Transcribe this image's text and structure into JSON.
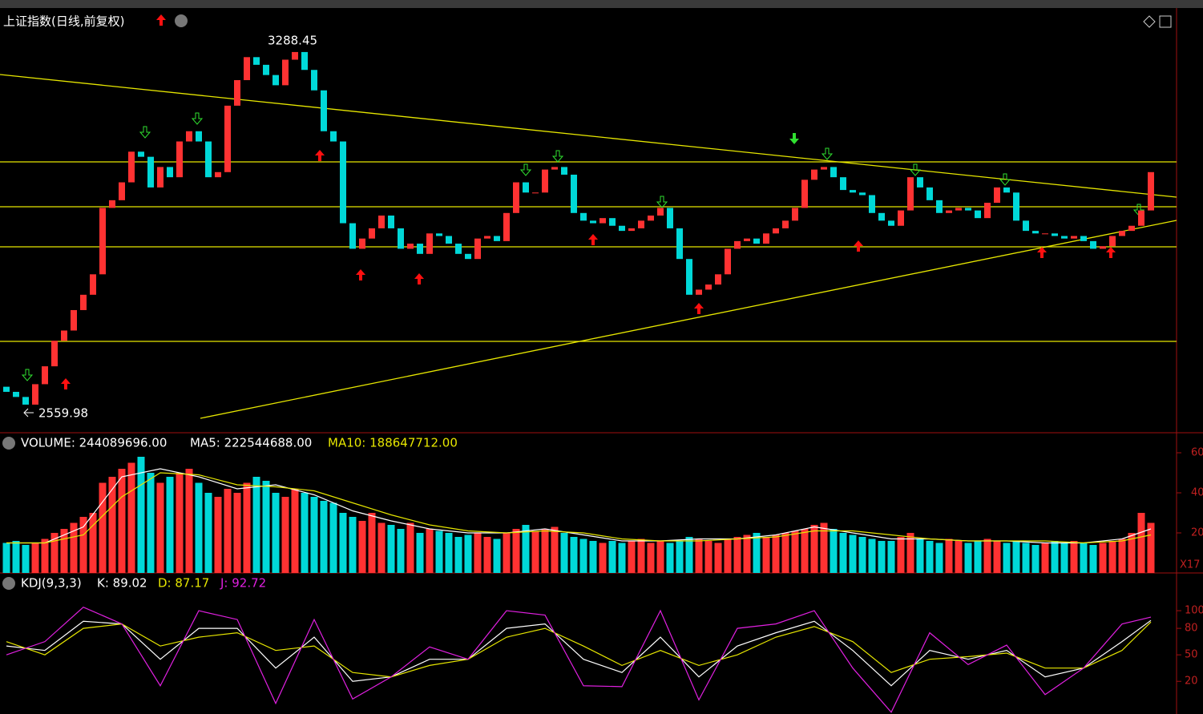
{
  "chart_data": {
    "type": "candlestick",
    "title": "上证指数(日线,前复权)",
    "ylim": [
      2520,
      3348
    ],
    "high_label": 3288.45,
    "low_label": 2559.98,
    "open": [
      2610,
      2600,
      2590,
      2575,
      2615,
      2650,
      2700,
      2720,
      2760,
      2790,
      2830,
      2960,
      2975,
      3010,
      3070,
      3060,
      3000,
      3040,
      3020,
      3090,
      3110,
      3090,
      3020,
      3030,
      3160,
      3210,
      3255,
      3240,
      3220,
      3200,
      3250,
      3265,
      3230,
      3190,
      3110,
      3090,
      2930,
      2880,
      2900,
      2920,
      2945,
      2920,
      2880,
      2890,
      2870,
      2910,
      2905,
      2890,
      2870,
      2860,
      2900,
      2905,
      2895,
      2950,
      3010,
      2990,
      2990,
      3035,
      3040,
      3025,
      2950,
      2935,
      2930,
      2940,
      2925,
      2915,
      2920,
      2935,
      2945,
      2960,
      2920,
      2860,
      2790,
      2800,
      2810,
      2830,
      2880,
      2895,
      2900,
      2890,
      2910,
      2920,
      2935,
      2960,
      3015,
      3035,
      3040,
      3020,
      2995,
      2990,
      2985,
      2950,
      2935,
      2925,
      2955,
      3020,
      3000,
      2975,
      2950,
      2955,
      2960,
      2955,
      2940,
      2970,
      3000,
      2990,
      2935,
      2915,
      2910,
      2910,
      2905,
      2900,
      2905,
      2895,
      2880,
      2885,
      2905,
      2915,
      2925,
      2955
    ],
    "close": [
      2600,
      2590,
      2575,
      2615,
      2650,
      2700,
      2720,
      2760,
      2790,
      2830,
      2960,
      2975,
      3010,
      3070,
      3060,
      3000,
      3040,
      3020,
      3090,
      3110,
      3090,
      3020,
      3030,
      3160,
      3210,
      3255,
      3240,
      3220,
      3200,
      3250,
      3265,
      3230,
      3190,
      3110,
      3090,
      2930,
      2880,
      2900,
      2920,
      2945,
      2920,
      2880,
      2890,
      2870,
      2910,
      2905,
      2890,
      2870,
      2860,
      2900,
      2905,
      2895,
      2950,
      3010,
      2990,
      2990,
      3035,
      3040,
      3025,
      2950,
      2935,
      2930,
      2940,
      2925,
      2915,
      2920,
      2935,
      2945,
      2960,
      2920,
      2860,
      2790,
      2800,
      2810,
      2830,
      2880,
      2895,
      2900,
      2890,
      2910,
      2920,
      2935,
      2960,
      3015,
      3035,
      3040,
      3020,
      2995,
      2990,
      2985,
      2950,
      2935,
      2925,
      2955,
      3020,
      3000,
      2975,
      2950,
      2955,
      2960,
      2955,
      2940,
      2970,
      3000,
      2990,
      2935,
      2915,
      2910,
      2910,
      2905,
      2900,
      2905,
      2895,
      2880,
      2885,
      2905,
      2915,
      2925,
      2955,
      3030
    ],
    "volume": {
      "label": "VOLUME: 244089696.00",
      "ma5_label": "MA5: 222544688.00",
      "ma10_label": "MA10: 188647712.00",
      "unit": "X17",
      "values": [
        15,
        16,
        14,
        15,
        17,
        20,
        22,
        25,
        28,
        30,
        45,
        48,
        52,
        55,
        58,
        50,
        45,
        48,
        50,
        52,
        45,
        40,
        38,
        42,
        40,
        45,
        48,
        46,
        40,
        38,
        42,
        40,
        38,
        36,
        35,
        30,
        28,
        26,
        30,
        25,
        24,
        22,
        25,
        20,
        22,
        21,
        20,
        18,
        19,
        20,
        18,
        17,
        20,
        22,
        24,
        21,
        22,
        23,
        20,
        18,
        17,
        16,
        15,
        16,
        15,
        16,
        17,
        15,
        16,
        15,
        16,
        18,
        17,
        16,
        15,
        17,
        18,
        19,
        20,
        18,
        19,
        20,
        21,
        22,
        24,
        25,
        22,
        20,
        19,
        18,
        17,
        16,
        16,
        18,
        20,
        17,
        16,
        15,
        17,
        16,
        15,
        16,
        17,
        16,
        15,
        16,
        15,
        14,
        15,
        16,
        15,
        16,
        15,
        14,
        15,
        16,
        17,
        20,
        30,
        25
      ],
      "ylim": [
        0,
        70
      ],
      "yticks": [
        20,
        40,
        60
      ],
      "series": [
        {
          "name": "MA5",
          "color": "#ffffff",
          "x": [
            0,
            4,
            8,
            12,
            16,
            20,
            24,
            28,
            32,
            36,
            40,
            44,
            48,
            52,
            56,
            60,
            64,
            68,
            72,
            76,
            80,
            84,
            88,
            92,
            96,
            100,
            104,
            108,
            112,
            116,
            119
          ],
          "values": [
            15,
            15,
            23,
            48,
            52,
            48,
            42,
            44,
            39,
            31,
            26,
            22,
            20,
            20,
            22,
            19,
            16,
            16,
            17,
            17,
            19,
            23,
            20,
            17,
            17,
            16,
            16,
            15,
            15,
            17,
            22
          ]
        },
        {
          "name": "MA10",
          "color": "#e6e600",
          "x": [
            0,
            4,
            8,
            12,
            16,
            20,
            24,
            28,
            32,
            36,
            40,
            44,
            48,
            52,
            56,
            60,
            64,
            68,
            72,
            76,
            80,
            84,
            88,
            92,
            96,
            100,
            104,
            108,
            112,
            116,
            119
          ],
          "values": [
            15,
            15,
            19,
            38,
            50,
            49,
            44,
            43,
            41,
            35,
            29,
            24,
            21,
            20,
            21,
            20,
            17,
            16,
            16,
            17,
            18,
            21,
            21,
            19,
            17,
            16,
            16,
            16,
            15,
            16,
            19
          ]
        }
      ]
    },
    "kdj": {
      "label": "KDJ(9,3,3)",
      "k_label": "K: 89.02",
      "d_label": "D: 87.17",
      "j_label": "J: 92.72",
      "ylim": [
        -17,
        140
      ],
      "yticks": [
        20,
        50,
        80,
        100
      ],
      "series": [
        {
          "name": "K",
          "color": "#ffffff",
          "x": [
            0,
            4,
            8,
            12,
            16,
            20,
            24,
            28,
            32,
            36,
            40,
            44,
            48,
            52,
            56,
            60,
            64,
            68,
            72,
            76,
            80,
            84,
            88,
            92,
            96,
            100,
            104,
            108,
            112,
            116,
            119
          ],
          "values": [
            60,
            55,
            88,
            85,
            45,
            80,
            80,
            35,
            70,
            20,
            25,
            45,
            45,
            80,
            85,
            45,
            30,
            70,
            25,
            60,
            75,
            88,
            55,
            15,
            55,
            45,
            55,
            25,
            35,
            65,
            89.02
          ]
        },
        {
          "name": "D",
          "color": "#e6e600",
          "x": [
            0,
            4,
            8,
            12,
            16,
            20,
            24,
            28,
            32,
            36,
            40,
            44,
            48,
            52,
            56,
            60,
            64,
            68,
            72,
            76,
            80,
            84,
            88,
            92,
            96,
            100,
            104,
            108,
            112,
            116,
            119
          ],
          "values": [
            65,
            50,
            80,
            85,
            60,
            70,
            75,
            55,
            60,
            30,
            25,
            38,
            45,
            70,
            80,
            60,
            38,
            55,
            38,
            50,
            70,
            82,
            65,
            30,
            45,
            48,
            52,
            35,
            35,
            55,
            87.17
          ]
        },
        {
          "name": "J",
          "color": "#e020e0",
          "x": [
            0,
            4,
            8,
            12,
            16,
            20,
            24,
            28,
            32,
            36,
            40,
            44,
            48,
            52,
            56,
            60,
            64,
            68,
            72,
            76,
            80,
            84,
            88,
            92,
            96,
            100,
            104,
            108,
            112,
            116,
            119
          ],
          "values": [
            50,
            65,
            104,
            85,
            15,
            100,
            90,
            -5,
            90,
            0,
            25,
            59,
            45,
            100,
            95,
            15,
            14,
            100,
            -1,
            80,
            85,
            100,
            35,
            -15,
            75,
            39,
            61,
            5,
            35,
            85,
            92.72
          ]
        }
      ]
    }
  }
}
